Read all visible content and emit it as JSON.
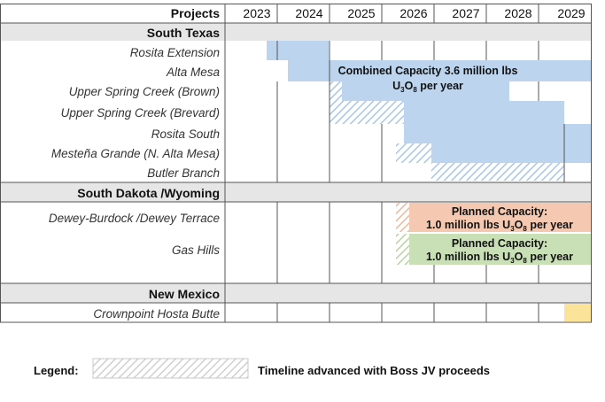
{
  "header": {
    "projects_label": "Projects"
  },
  "years": [
    "2023",
    "2024",
    "2025",
    "2026",
    "2027",
    "2028",
    "2029"
  ],
  "regions": [
    {
      "name": "South Texas",
      "projects": [
        "Rosita Extension",
        "Alta Mesa",
        "Upper Spring Creek (Brown)",
        "Upper Spring Creek (Brevard)",
        "Rosita South",
        "Mesteña Grande (N. Alta Mesa)",
        "Butler Branch"
      ]
    },
    {
      "name": "South Dakota /Wyoming",
      "projects": [
        "Dewey-Burdock /Dewey Terrace",
        "Gas Hills"
      ]
    },
    {
      "name": "New Mexico",
      "projects": [
        "Crownpoint Hosta Butte"
      ]
    }
  ],
  "annotations": {
    "south_texas": {
      "line1": "Combined Capacity 3.6 million lbs",
      "line2_pre": "U",
      "line2_sub1": "3",
      "line2_mid": "O",
      "line2_sub2": "8",
      "line2_post": " per year"
    },
    "dewey": {
      "line1": "Planned Capacity:",
      "line2_pre": "1.0 million lbs U",
      "line2_sub1": "3",
      "line2_mid": "O",
      "line2_sub2": "8",
      "line2_post": " per year"
    },
    "gas_hills": {
      "line1": "Planned Capacity:",
      "line2_pre": "1.0 million lbs U",
      "line2_sub1": "3",
      "line2_mid": "O",
      "line2_sub2": "8",
      "line2_post": " per year"
    }
  },
  "legend": {
    "label": "Legend:",
    "description": "Timeline advanced with Boss JV proceeds"
  },
  "colors": {
    "blue": "#bcd4ee",
    "orange": "#f5c9b1",
    "green": "#c9dfb6",
    "yellow": "#fbe49a",
    "hatch": "#bcd4ee",
    "region_bg": "#e6e6e6"
  }
}
